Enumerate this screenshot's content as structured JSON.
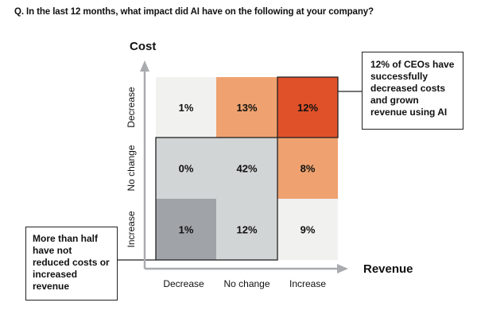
{
  "question": "Q. In the last 12 months, what impact did AI have on the following at your company?",
  "chart_data": {
    "type": "heatmap",
    "xlabel": "Revenue",
    "ylabel": "Cost",
    "x_categories": [
      "Decrease",
      "No change",
      "Increase"
    ],
    "y_categories": [
      "Decrease",
      "No change",
      "Increase"
    ],
    "cells": [
      [
        {
          "value": "1%",
          "color": "#f1f1f0"
        },
        {
          "value": "13%",
          "color": "#efa26f"
        },
        {
          "value": "12%",
          "color": "#e0512a"
        }
      ],
      [
        {
          "value": "0%",
          "color": "#d2d5d5"
        },
        {
          "value": "42%",
          "color": "#d2d5d5"
        },
        {
          "value": "8%",
          "color": "#efa26f"
        }
      ],
      [
        {
          "value": "1%",
          "color": "#a0a4a9"
        },
        {
          "value": "12%",
          "color": "#d2d5d5"
        },
        {
          "value": "9%",
          "color": "#f1f1f0"
        }
      ]
    ],
    "highlight_top_right": "Cost Decrease / Revenue Increase",
    "highlight_bottom_left": "Cost No change–Increase / Revenue Decrease–No change"
  },
  "callouts": {
    "ceo": "12% of CEOs have successfully decreased costs and grown revenue using AI",
    "half": "More than half have not reduced costs or increased revenue"
  },
  "colors": {
    "axis": "#a9abae",
    "orange_dark": "#e0512a",
    "orange_light": "#efa26f",
    "grey_light": "#d2d5d5",
    "grey_dark": "#a0a4a9",
    "offwhite": "#f1f1f0"
  }
}
